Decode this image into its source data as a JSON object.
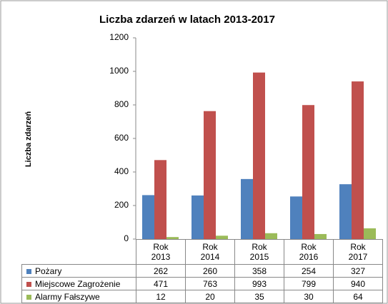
{
  "chart_data": {
    "type": "bar",
    "title": "Liczba zdarzeń w latach 2013-2017",
    "y_label": "Liczba zdarzeń",
    "categories": [
      "Rok 2013",
      "Rok 2014",
      "Rok 2015",
      "Rok 2016",
      "Rok 2017"
    ],
    "series": [
      {
        "name": "Pożary",
        "color": "#4f81bd",
        "values": [
          262,
          260,
          358,
          254,
          327
        ]
      },
      {
        "name": "Miejscowe Zagrożenie",
        "color": "#c0504d",
        "values": [
          471,
          763,
          993,
          799,
          940
        ]
      },
      {
        "name": "Alarmy Fałszywe",
        "color": "#9bbb59",
        "values": [
          12,
          20,
          35,
          30,
          64
        ]
      }
    ],
    "ylim": [
      0,
      1200
    ],
    "yticks": [
      0,
      200,
      400,
      600,
      800,
      1000,
      1200
    ],
    "grid": false,
    "data_table": true
  }
}
